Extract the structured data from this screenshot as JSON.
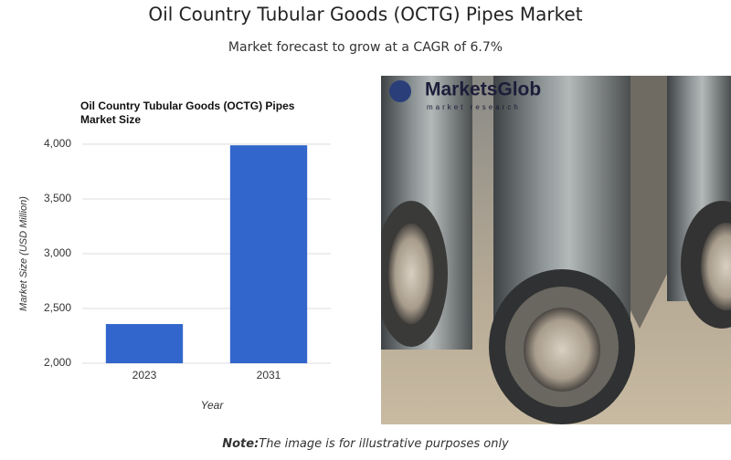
{
  "header": {
    "title": "Oil Country Tubular Goods (OCTG) Pipes Market",
    "subtitle": "Market forecast to grow at a CAGR of 6.7%"
  },
  "chart_data": {
    "type": "bar",
    "title": "Oil Country Tubular Goods (OCTG) Pipes Market Size",
    "x_label": "Year",
    "y_label": "Market Size (USD Million)",
    "categories": [
      "2023",
      "2031"
    ],
    "values": [
      2358,
      3990
    ],
    "color": "#3366cc",
    "ylim": [
      2000,
      4000
    ],
    "yticks": [
      {
        "value": 2000,
        "label": "2,000"
      },
      {
        "value": 2500,
        "label": "2,500"
      },
      {
        "value": 3000,
        "label": "3,000"
      },
      {
        "value": 3500,
        "label": "3,500"
      },
      {
        "value": 4000,
        "label": "4,000"
      }
    ],
    "grid": true
  },
  "image": {
    "logo": "MarketsGlob",
    "logo_tagline": "market research"
  },
  "note": {
    "label": "Note:",
    "text": "The image is for illustrative purposes only"
  }
}
